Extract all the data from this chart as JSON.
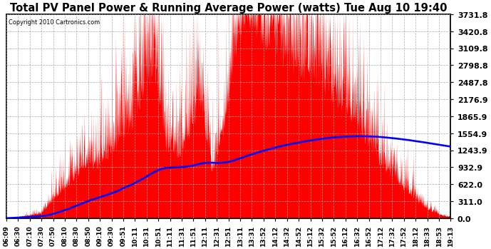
{
  "title": "Total PV Panel Power & Running Average Power (watts) Tue Aug 10 19:40",
  "copyright_text": "Copyright 2010 Cartronics.com",
  "background_color": "#ffffff",
  "plot_bg_color": "#ffffff",
  "grid_color": "#aaaaaa",
  "fill_color": "#ff0000",
  "line_color": "#0000ff",
  "yticks": [
    0.0,
    311.0,
    622.0,
    932.9,
    1243.9,
    1554.9,
    1865.9,
    2176.9,
    2487.8,
    2798.8,
    3109.8,
    3420.8,
    3731.8
  ],
  "xtick_labels": [
    "06:09",
    "06:30",
    "07:10",
    "07:30",
    "07:50",
    "08:10",
    "08:30",
    "08:50",
    "09:10",
    "09:30",
    "09:51",
    "10:11",
    "10:31",
    "10:51",
    "11:11",
    "11:31",
    "11:51",
    "12:11",
    "12:31",
    "12:51",
    "13:11",
    "13:31",
    "13:52",
    "14:12",
    "14:32",
    "14:52",
    "15:12",
    "15:32",
    "15:52",
    "16:12",
    "16:32",
    "16:52",
    "17:12",
    "17:32",
    "17:52",
    "18:12",
    "18:33",
    "18:53",
    "19:13"
  ],
  "ymax": 3731.8,
  "ymin": 0.0,
  "n_points": 2000
}
